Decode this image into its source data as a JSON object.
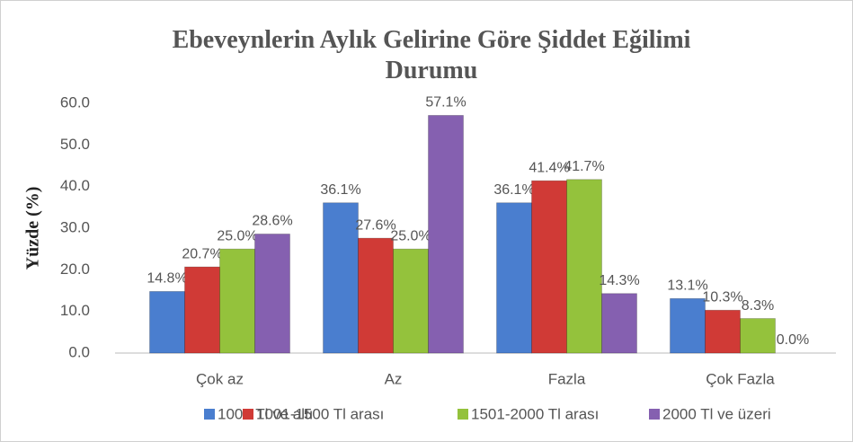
{
  "chart_data": {
    "type": "bar",
    "title": "Ebeveynlerin Aylık Gelirine Göre Şiddet Eğilimi Durumu",
    "y_label": "Yüzde (%)",
    "categories": [
      "Çok az",
      "Az",
      "Fazla",
      "Çok Fazla"
    ],
    "series": [
      {
        "name": "1000 Tl ve altı",
        "color": "#4a7ecf",
        "values": [
          14.8,
          36.1,
          36.1,
          13.1
        ],
        "value_labels": [
          "14.8%",
          "36.1%",
          "36.1%",
          "13.1%"
        ]
      },
      {
        "name": "1001-1500 Tl arası",
        "color": "#d03a36",
        "values": [
          20.7,
          27.6,
          41.4,
          10.3
        ],
        "value_labels": [
          "20.7%",
          "27.6%",
          "41.4%",
          "10.3%"
        ]
      },
      {
        "name": "1501-2000 Tl arası",
        "color": "#94c23c",
        "values": [
          25.0,
          25.0,
          41.7,
          8.3
        ],
        "value_labels": [
          "25.0%",
          "25.0%",
          "41.7%",
          "8.3%"
        ]
      },
      {
        "name": "2000 Tl ve üzeri",
        "color": "#8560b0",
        "values": [
          28.6,
          57.1,
          14.3,
          0.0
        ],
        "value_labels": [
          "28.6%",
          "57.1%",
          "14.3%",
          "0.0%"
        ]
      }
    ],
    "ylim": [
      0,
      60
    ],
    "yticks": [
      {
        "value": 0,
        "label": "0.0"
      },
      {
        "value": 10,
        "label": "10.0"
      },
      {
        "value": 20,
        "label": "20.0"
      },
      {
        "value": 30,
        "label": "30.0"
      },
      {
        "value": 40,
        "label": "40.0"
      },
      {
        "value": 50,
        "label": "50.0"
      },
      {
        "value": 60,
        "label": "60.0"
      }
    ],
    "grid": false,
    "legend": "bottom"
  }
}
